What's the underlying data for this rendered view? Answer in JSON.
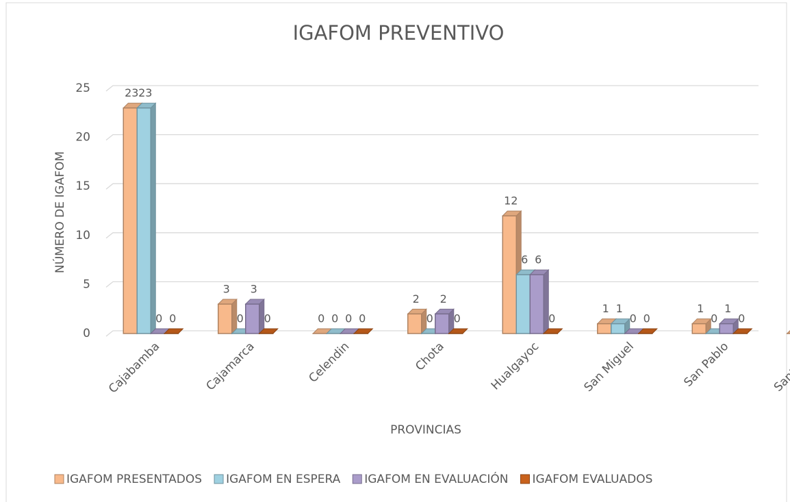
{
  "chart_data": {
    "type": "bar",
    "title": "IGAFOM PREVENTIVO",
    "x_label": "PROVINCIAS",
    "y_label": "NÚMERO DE IGAFOM",
    "categories": [
      "Cajabamba",
      "Cajamarca",
      "Celendin",
      "Chota",
      "Hualgayoc",
      "San Miguel",
      "San Pablo",
      "Santa Cruz"
    ],
    "series": [
      {
        "name": "IGAFOM PRESENTADOS",
        "color": "#f8b98b",
        "values": [
          23,
          3,
          0,
          2,
          12,
          1,
          1,
          0
        ]
      },
      {
        "name": "IGAFOM EN ESPERA",
        "color": "#9fd1e1",
        "values": [
          23,
          0,
          0,
          0,
          6,
          1,
          0,
          0
        ]
      },
      {
        "name": "IGAFOM EN EVALUACIÓN",
        "color": "#aa9cca",
        "values": [
          0,
          3,
          0,
          2,
          6,
          0,
          1,
          0
        ]
      },
      {
        "name": "IGAFOM EVALUADOS",
        "color": "#c9621c",
        "values": [
          0,
          0,
          0,
          0,
          0,
          0,
          0,
          0
        ]
      }
    ],
    "ylim": [
      0,
      25
    ],
    "yticks": [
      0,
      5,
      10,
      15,
      20,
      25
    ],
    "grid": true,
    "legend": "bottom"
  }
}
